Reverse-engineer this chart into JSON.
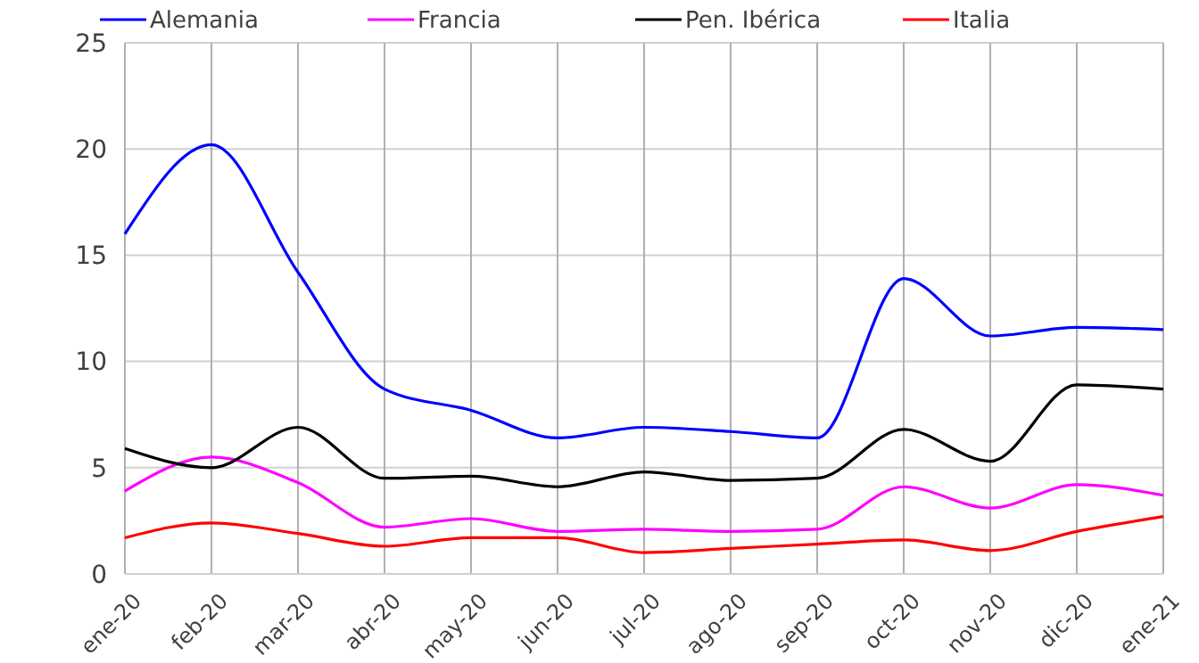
{
  "chart_data": {
    "type": "line",
    "categories": [
      "ene-20",
      "feb-20",
      "mar-20",
      "abr-20",
      "may-20",
      "jun-20",
      "jul-20",
      "ago-20",
      "sep-20",
      "oct-20",
      "nov-20",
      "dic-20",
      "ene-21"
    ],
    "series": [
      {
        "name": "Alemania",
        "color": "#0000ff",
        "values": [
          16,
          20.2,
          14.2,
          8.7,
          7.7,
          6.4,
          6.9,
          6.7,
          6.4,
          13.9,
          11.2,
          11.6,
          11.5
        ]
      },
      {
        "name": "Francia",
        "color": "#ff00ff",
        "values": [
          3.9,
          5.5,
          4.3,
          2.2,
          2.6,
          2.0,
          2.1,
          2.0,
          2.1,
          4.1,
          3.1,
          4.2,
          3.7
        ]
      },
      {
        "name": "Pen. Ibérica",
        "color": "#000000",
        "values": [
          5.9,
          5.0,
          6.9,
          4.5,
          4.6,
          4.1,
          4.8,
          4.4,
          4.5,
          6.8,
          5.3,
          8.9,
          8.7
        ]
      },
      {
        "name": "Italia",
        "color": "#ff0000",
        "values": [
          1.7,
          2.4,
          1.9,
          1.3,
          1.7,
          1.7,
          1.0,
          1.2,
          1.4,
          1.6,
          1.1,
          2.0,
          2.7
        ]
      }
    ],
    "ylim": [
      0,
      25
    ],
    "yticks": [
      0,
      5,
      10,
      15,
      20,
      25
    ],
    "grid": true,
    "legend": "top",
    "marker": "none",
    "line_style": "solid"
  }
}
